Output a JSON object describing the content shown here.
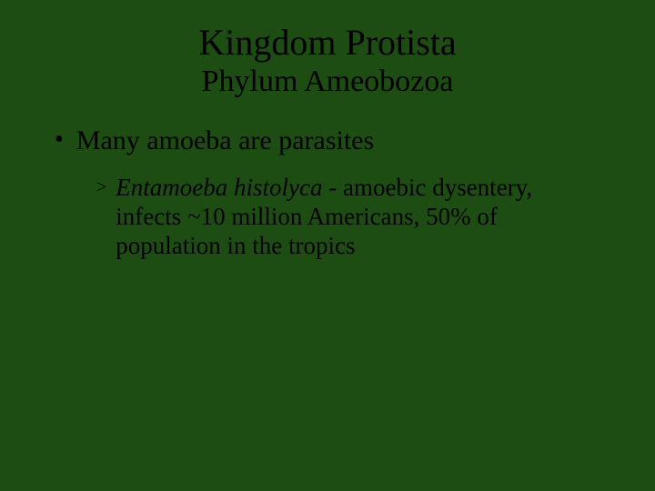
{
  "background_color": "#1e4d13",
  "text_color": "#000000",
  "font_family": "Times New Roman",
  "title": {
    "text": "Kingdom Protista",
    "fontsize": 40
  },
  "subtitle": {
    "text": "Phylum Ameobozoa",
    "fontsize": 34
  },
  "bullet": {
    "marker": "•",
    "text": "Many amoeba are parasites",
    "fontsize": 30
  },
  "sub_bullet": {
    "marker": ">",
    "italic_part": "Entamoeba histolyca",
    "rest_part": " - amoebic dysentery, infects ~10 million Americans, 50% of population in the tropics",
    "fontsize": 27
  }
}
